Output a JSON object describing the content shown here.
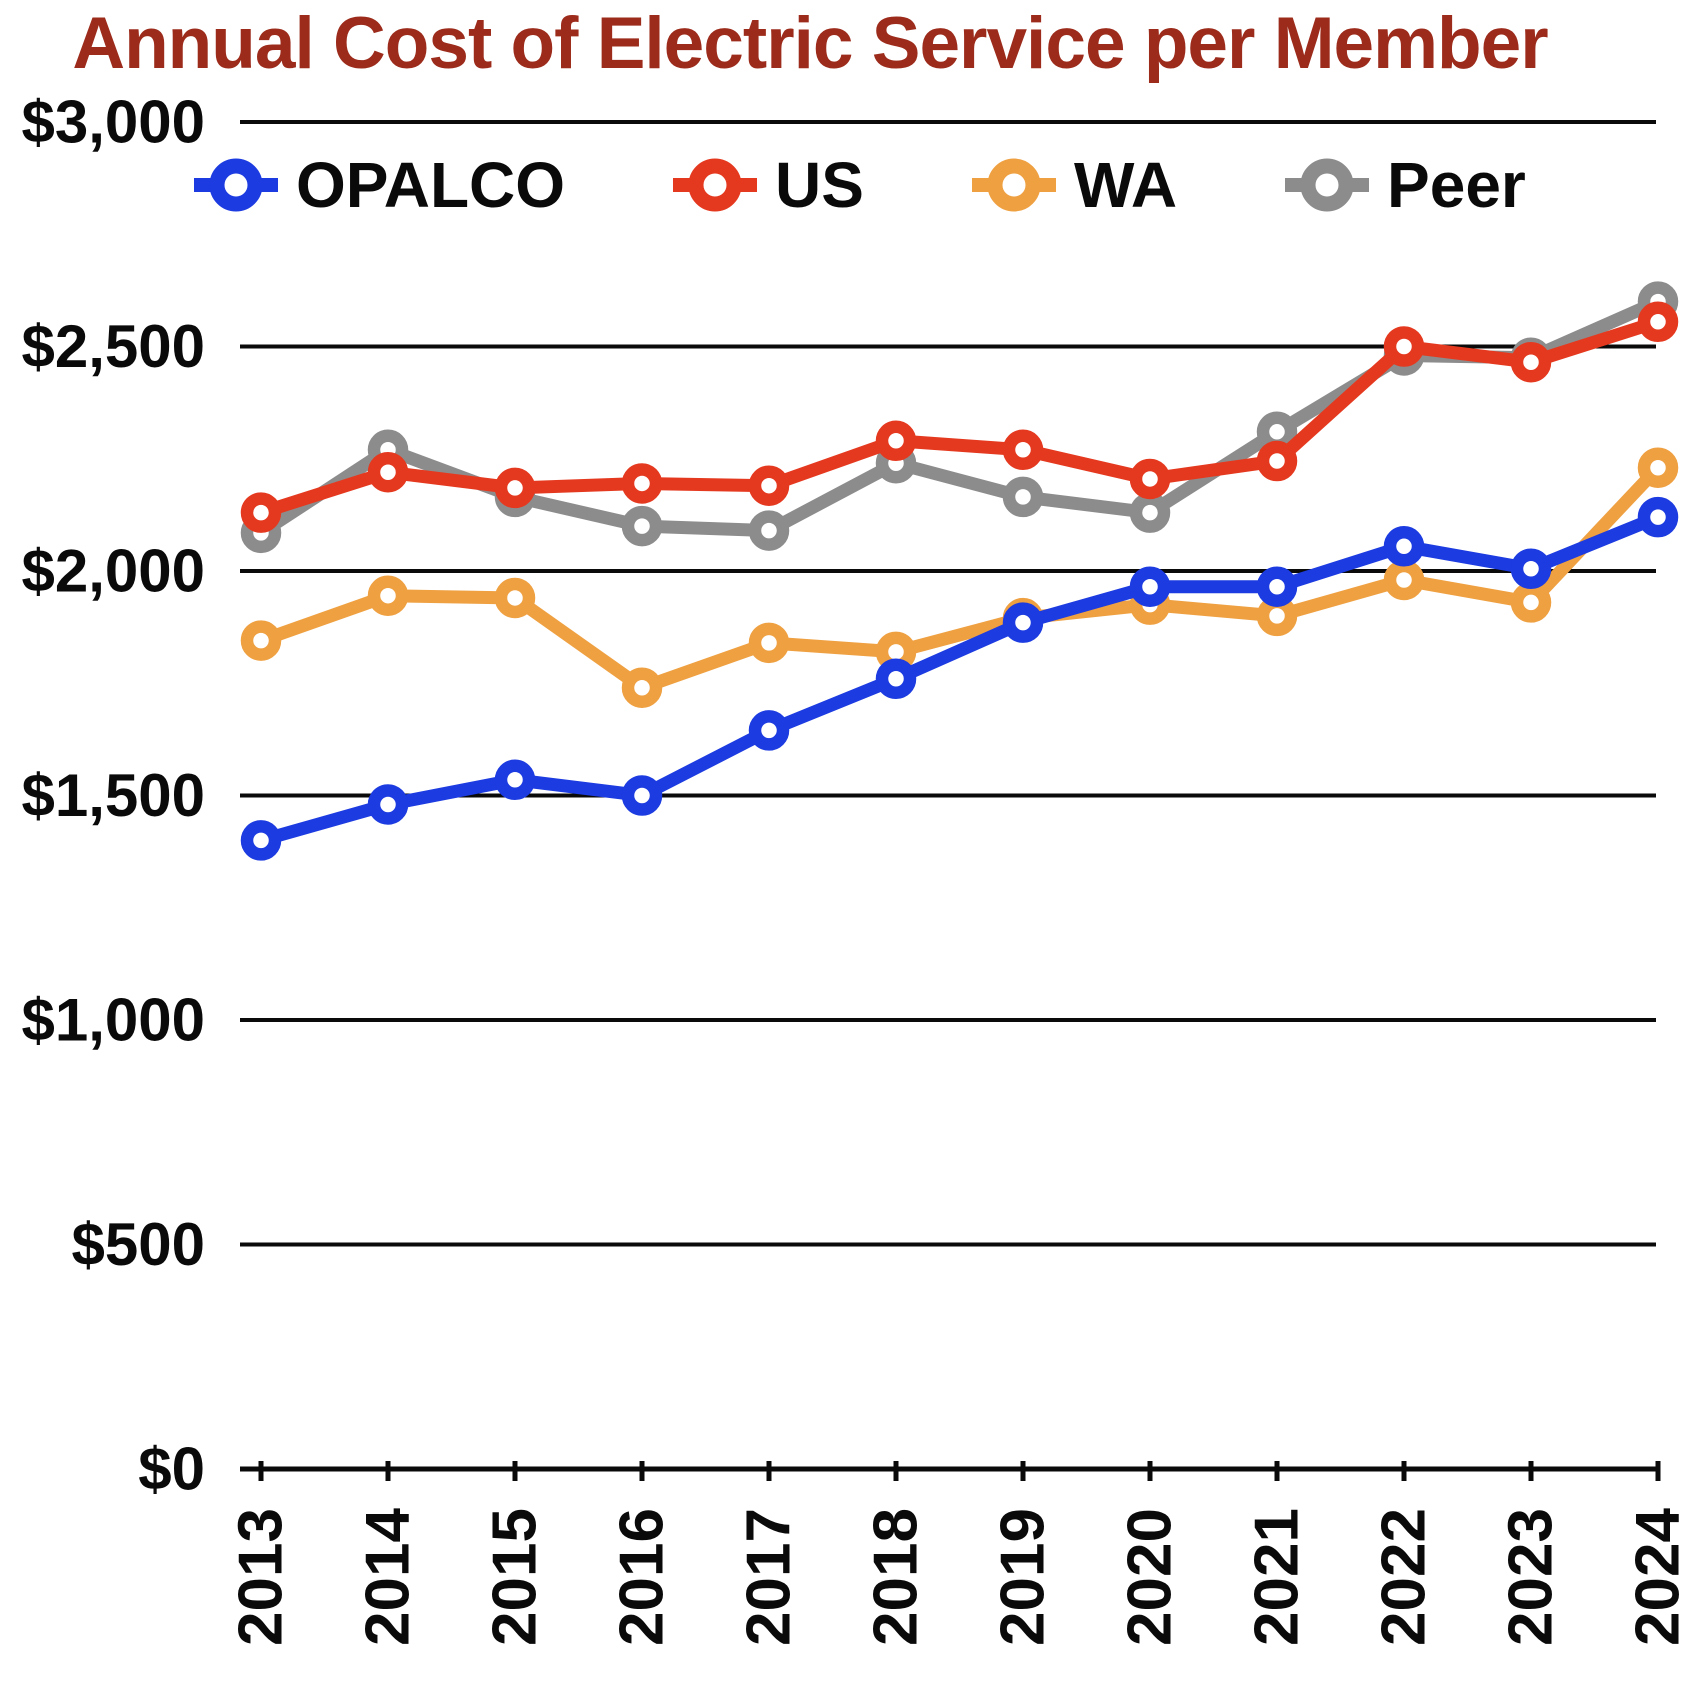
{
  "title": "Annual Cost of Electric Service per Member",
  "title_color": "#9C2B1B",
  "chart_data": {
    "type": "line",
    "title": "Annual Cost of Electric Service per Member",
    "x": [
      2013,
      2014,
      2015,
      2016,
      2017,
      2018,
      2019,
      2020,
      2021,
      2022,
      2023,
      2024
    ],
    "x_labels": [
      "2013",
      "2014",
      "2015",
      "2016",
      "2017",
      "2018",
      "2019",
      "2020",
      "2021",
      "2022",
      "2023",
      "2024"
    ],
    "series": [
      {
        "name": "OPALCO",
        "color": "#1C3BE0",
        "values": [
          1400,
          1480,
          1535,
          1500,
          1645,
          1760,
          1885,
          1965,
          1965,
          2055,
          2005,
          2120
        ]
      },
      {
        "name": "US",
        "color": "#E5391F",
        "values": [
          2130,
          2220,
          2185,
          2195,
          2190,
          2290,
          2270,
          2205,
          2245,
          2500,
          2465,
          2555
        ]
      },
      {
        "name": "WA",
        "color": "#EFA041",
        "values": [
          1845,
          1945,
          1940,
          1740,
          1840,
          1820,
          1895,
          1925,
          1900,
          1980,
          1930,
          2230
        ]
      },
      {
        "name": "Peer",
        "color": "#8C8C8C",
        "values": [
          2085,
          2270,
          2165,
          2100,
          2090,
          2240,
          2165,
          2130,
          2310,
          2480,
          2475,
          2600
        ]
      }
    ],
    "xlabel": "",
    "ylabel": "",
    "ylim": [
      0,
      3000
    ],
    "y_ticks": [
      0,
      500,
      1000,
      1500,
      2000,
      2500,
      3000
    ],
    "y_tick_labels": [
      "$0",
      "$500",
      "$1,000",
      "$1,500",
      "$2,000",
      "$2,500",
      "$3,000"
    ],
    "grid": true,
    "legend_position": "top",
    "marker": "open-circle",
    "axis_color": "#0a0a0a"
  }
}
